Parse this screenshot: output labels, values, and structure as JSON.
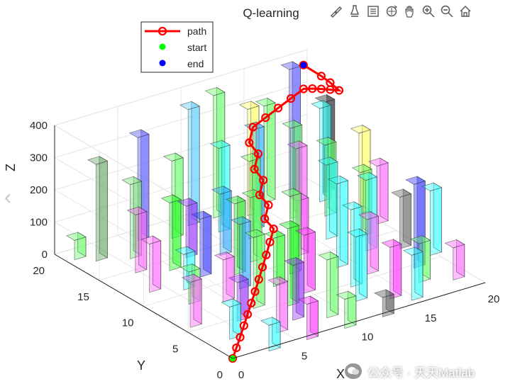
{
  "chart_data": {
    "type": "3d-bar-path",
    "title": "Q-learning",
    "xlabel": "X",
    "ylabel": "Y",
    "zlabel": "Z",
    "xlim": [
      0,
      20
    ],
    "ylim": [
      0,
      20
    ],
    "zlim": [
      0,
      400
    ],
    "xticks": [
      "0",
      "5",
      "10",
      "15",
      "20"
    ],
    "yticks": [
      "0",
      "5",
      "10",
      "15",
      "20"
    ],
    "zticks": [
      "0",
      "100",
      "200",
      "300",
      "400"
    ],
    "legend": {
      "placement": "top-left",
      "entries": [
        {
          "label": "path",
          "color": "#ff0000",
          "marker": "o-line"
        },
        {
          "label": "start",
          "color": "#00ff00",
          "marker": "dot"
        },
        {
          "label": "end",
          "color": "#0000ff",
          "marker": "dot"
        }
      ]
    },
    "start": {
      "x": 0,
      "y": 0,
      "z": 0
    },
    "end": {
      "x": 19,
      "y": 19,
      "z": 380
    },
    "path": [
      [
        0,
        0,
        0
      ],
      [
        1,
        1,
        5
      ],
      [
        2,
        2,
        10
      ],
      [
        3,
        3,
        18
      ],
      [
        4,
        4,
        25
      ],
      [
        5,
        5,
        32
      ],
      [
        6,
        6,
        40
      ],
      [
        7,
        7,
        50
      ],
      [
        8,
        8,
        60
      ],
      [
        9,
        9,
        70
      ],
      [
        10,
        10,
        82
      ],
      [
        11,
        11,
        95
      ],
      [
        11,
        12,
        110
      ],
      [
        12,
        13,
        125
      ],
      [
        12,
        14,
        140
      ],
      [
        13,
        15,
        158
      ],
      [
        13,
        16,
        176
      ],
      [
        14,
        17,
        196
      ],
      [
        14,
        18,
        214
      ],
      [
        15,
        19,
        234
      ],
      [
        16,
        19,
        252
      ],
      [
        17,
        19,
        270
      ],
      [
        18,
        19,
        288
      ],
      [
        19,
        19,
        306
      ],
      [
        19,
        18,
        323
      ],
      [
        19,
        17,
        338
      ],
      [
        19,
        16,
        352
      ],
      [
        19,
        15,
        366
      ],
      [
        19,
        16,
        374
      ],
      [
        19,
        17,
        378
      ],
      [
        19,
        19,
        380
      ]
    ],
    "bars": [
      {
        "x": 1,
        "y": 19,
        "h": 60,
        "c": "#66ff66"
      },
      {
        "x": 2,
        "y": 18,
        "h": 300,
        "c": "#66aa66"
      },
      {
        "x": 4,
        "y": 17,
        "h": 230,
        "c": "#77dd77"
      },
      {
        "x": 6,
        "y": 19,
        "h": 320,
        "c": "#5555ff"
      },
      {
        "x": 8,
        "y": 18,
        "h": 240,
        "c": "#66ff66"
      },
      {
        "x": 10,
        "y": 19,
        "h": 360,
        "c": "#55ccff"
      },
      {
        "x": 12,
        "y": 19,
        "h": 380,
        "c": "#66ff66"
      },
      {
        "x": 14,
        "y": 18,
        "h": 330,
        "c": "#ffff66"
      },
      {
        "x": 16,
        "y": 19,
        "h": 300,
        "c": "#66ff66"
      },
      {
        "x": 18,
        "y": 19,
        "h": 390,
        "c": "#5555ff"
      },
      {
        "x": 20,
        "y": 18,
        "h": 280,
        "c": "#222222"
      },
      {
        "x": 11,
        "y": 17,
        "h": 260,
        "c": "#33ffff"
      },
      {
        "x": 13,
        "y": 16,
        "h": 310,
        "c": "#33aaff"
      },
      {
        "x": 16,
        "y": 16,
        "h": 280,
        "c": "#66ff66"
      },
      {
        "x": 19,
        "y": 17,
        "h": 290,
        "c": "#33ffff"
      },
      {
        "x": 3,
        "y": 15,
        "h": 180,
        "c": "#ff66ff"
      },
      {
        "x": 5,
        "y": 14,
        "h": 210,
        "c": "#22ff22"
      },
      {
        "x": 7,
        "y": 15,
        "h": 160,
        "c": "#9933ff"
      },
      {
        "x": 9,
        "y": 14,
        "h": 190,
        "c": "#33aaff"
      },
      {
        "x": 12,
        "y": 15,
        "h": 240,
        "c": "#66ff66"
      },
      {
        "x": 15,
        "y": 14,
        "h": 260,
        "c": "#ff66ff"
      },
      {
        "x": 18,
        "y": 15,
        "h": 220,
        "c": "#66ff66"
      },
      {
        "x": 20,
        "y": 14,
        "h": 250,
        "c": "#ffff66"
      },
      {
        "x": 2,
        "y": 12,
        "h": 150,
        "c": "#ff66ff"
      },
      {
        "x": 4,
        "y": 11,
        "h": 110,
        "c": "#33ffff"
      },
      {
        "x": 6,
        "y": 12,
        "h": 180,
        "c": "#3333ff"
      },
      {
        "x": 8,
        "y": 11,
        "h": 220,
        "c": "#22dd22"
      },
      {
        "x": 10,
        "y": 12,
        "h": 200,
        "c": "#66ff66"
      },
      {
        "x": 13,
        "y": 11,
        "h": 170,
        "c": "#ff66ff"
      },
      {
        "x": 16,
        "y": 12,
        "h": 230,
        "c": "#33ffff"
      },
      {
        "x": 18,
        "y": 11,
        "h": 200,
        "c": "#66ff66"
      },
      {
        "x": 20,
        "y": 12,
        "h": 180,
        "c": "#ff66ff"
      },
      {
        "x": 3,
        "y": 9,
        "h": 100,
        "c": "#66ff66"
      },
      {
        "x": 5,
        "y": 8,
        "h": 130,
        "c": "#ff66ff"
      },
      {
        "x": 7,
        "y": 9,
        "h": 200,
        "c": "#33aaff"
      },
      {
        "x": 9,
        "y": 8,
        "h": 150,
        "c": "#22ff22"
      },
      {
        "x": 11,
        "y": 9,
        "h": 240,
        "c": "#66ff66"
      },
      {
        "x": 14,
        "y": 8,
        "h": 260,
        "c": "#33ffff"
      },
      {
        "x": 17,
        "y": 9,
        "h": 220,
        "c": "#33ffff"
      },
      {
        "x": 19,
        "y": 8,
        "h": 160,
        "c": "#666666"
      },
      {
        "x": 1,
        "y": 6,
        "h": 140,
        "c": "#ff66ff"
      },
      {
        "x": 4,
        "y": 5,
        "h": 120,
        "c": "#9933ff"
      },
      {
        "x": 6,
        "y": 6,
        "h": 220,
        "c": "#66ff66"
      },
      {
        "x": 8,
        "y": 5,
        "h": 240,
        "c": "#22ff22"
      },
      {
        "x": 10,
        "y": 6,
        "h": 180,
        "c": "#ff33ff"
      },
      {
        "x": 13,
        "y": 5,
        "h": 240,
        "c": "#33ffff"
      },
      {
        "x": 15,
        "y": 6,
        "h": 170,
        "c": "#ff66ff"
      },
      {
        "x": 18,
        "y": 5,
        "h": 260,
        "c": "#3333ff"
      },
      {
        "x": 20,
        "y": 6,
        "h": 200,
        "c": "#33ffff"
      },
      {
        "x": 2,
        "y": 3,
        "h": 100,
        "c": "#33ffff"
      },
      {
        "x": 5,
        "y": 2,
        "h": 150,
        "c": "#ff66ff"
      },
      {
        "x": 7,
        "y": 3,
        "h": 170,
        "c": "#9933ff"
      },
      {
        "x": 9,
        "y": 2,
        "h": 180,
        "c": "#66ff66"
      },
      {
        "x": 12,
        "y": 3,
        "h": 200,
        "c": "#33ffff"
      },
      {
        "x": 14,
        "y": 2,
        "h": 160,
        "c": "#ff33ff"
      },
      {
        "x": 17,
        "y": 3,
        "h": 120,
        "c": "#66ff66"
      },
      {
        "x": 19,
        "y": 2,
        "h": 100,
        "c": "#ff66ff"
      },
      {
        "x": 3,
        "y": 0,
        "h": 80,
        "c": "#33ffff"
      },
      {
        "x": 6,
        "y": 0,
        "h": 110,
        "c": "#ff33ff"
      },
      {
        "x": 9,
        "y": 0,
        "h": 90,
        "c": "#66ff66"
      },
      {
        "x": 12,
        "y": 0,
        "h": 60,
        "c": "#555555"
      },
      {
        "x": 15,
        "y": 1,
        "h": 140,
        "c": "#33ffff"
      }
    ]
  },
  "toolbar": {
    "icons": [
      "brush-icon",
      "data-tip-icon",
      "legend-icon",
      "rotate-icon",
      "pan-icon",
      "zoom-in-icon",
      "zoom-out-icon",
      "home-icon"
    ]
  },
  "watermark": {
    "text": "公众号 · 天天Matlab"
  },
  "colors": {
    "path": "#ff0000",
    "start": "#00ff00",
    "end": "#0000ff",
    "axis": "#262626",
    "grid": "#e6e6e6"
  }
}
